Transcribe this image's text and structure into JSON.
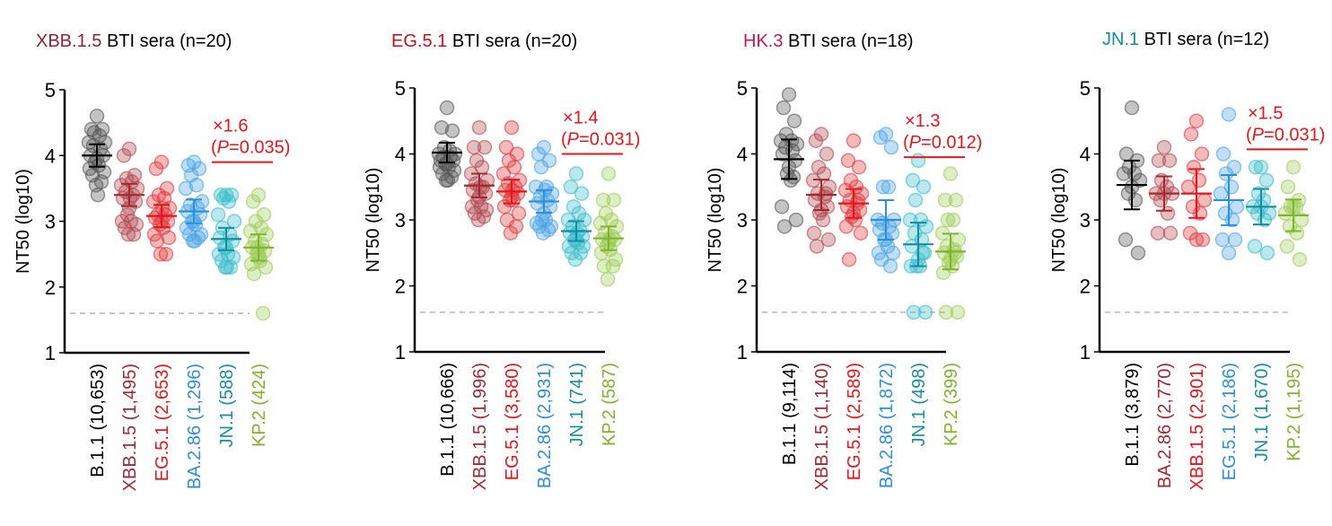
{
  "chart_data": [
    {
      "type": "scatter",
      "title_highlight": "XBB.1.5",
      "title_highlight_color": "#8b2332",
      "title_rest": " BTI sera (n=20)",
      "ylabel": "NT50 (log10)",
      "ylim": [
        1,
        5
      ],
      "yticks": [
        "1",
        "2",
        "3",
        "4",
        "5"
      ],
      "detection_limit": 1.6,
      "categories": [
        {
          "name": "B.1.1 (10,653)",
          "color": "#000000",
          "fill": "#555555",
          "mean": 4.0,
          "err": 0.17,
          "points": [
            4.6,
            4.4,
            4.4,
            4.35,
            4.3,
            4.2,
            4.2,
            4.15,
            4.1,
            4.0,
            4.0,
            3.95,
            3.9,
            3.85,
            3.8,
            3.75,
            3.7,
            3.6,
            3.55,
            3.4
          ]
        },
        {
          "name": "XBB.1.5 (1,495)",
          "color": "#a3282f",
          "fill": "#b3474f",
          "mean": 3.4,
          "err": 0.17,
          "points": [
            4.1,
            4.0,
            3.7,
            3.65,
            3.6,
            3.55,
            3.5,
            3.45,
            3.4,
            3.35,
            3.3,
            3.2,
            3.1,
            3.0,
            3.0,
            2.95,
            2.9,
            2.8,
            2.8,
            3.35
          ]
        },
        {
          "name": "EG.5.1 (2,653)",
          "color": "#e8141a",
          "fill": "#e0383c",
          "mean": 3.08,
          "err": 0.17,
          "points": [
            3.9,
            3.8,
            3.5,
            3.4,
            3.35,
            3.3,
            3.2,
            3.1,
            3.1,
            3.05,
            3.0,
            3.0,
            2.95,
            2.9,
            2.8,
            2.75,
            2.7,
            2.5,
            2.5,
            3.2
          ]
        },
        {
          "name": "BA.2.86 (1,296)",
          "color": "#2b8fde",
          "fill": "#4aa3e6",
          "mean": 3.15,
          "err": 0.18,
          "points": [
            3.9,
            3.85,
            3.8,
            3.7,
            3.55,
            3.5,
            3.3,
            3.25,
            3.2,
            3.15,
            3.1,
            3.0,
            3.0,
            2.95,
            2.9,
            2.8,
            2.8,
            2.75,
            2.7,
            2.7
          ]
        },
        {
          "name": "JN.1 (588)",
          "color": "#138e9e",
          "fill": "#3bbccc",
          "mean": 2.73,
          "err": 0.17,
          "points": [
            3.4,
            3.4,
            3.4,
            3.35,
            3.3,
            3.1,
            3.0,
            2.9,
            2.8,
            2.75,
            2.7,
            2.6,
            2.6,
            2.5,
            2.5,
            2.45,
            2.4,
            2.3,
            2.3,
            2.3
          ]
        },
        {
          "name": "KP.2 (424)",
          "color": "#7fb42d",
          "fill": "#9dcc55",
          "mean": 2.6,
          "err": 0.2,
          "points": [
            3.4,
            3.3,
            3.1,
            3.0,
            2.9,
            2.85,
            2.8,
            2.7,
            2.65,
            2.6,
            2.55,
            2.5,
            2.5,
            2.4,
            2.35,
            2.3,
            2.2,
            1.6,
            2.6,
            2.45
          ]
        }
      ],
      "annotation": {
        "fold": "×1.6",
        "p_label": "P",
        "p_value": "=0.035)",
        "open_paren": "(",
        "from": 4,
        "to": 5,
        "y": 3.9
      }
    },
    {
      "type": "scatter",
      "title_highlight": "EG.5.1",
      "title_highlight_color": "#c0141b",
      "title_rest": " BTI sera (n=20)",
      "ylabel": "NT50 (log10)",
      "ylim": [
        1,
        5
      ],
      "yticks": [
        "1",
        "2",
        "3",
        "4",
        "5"
      ],
      "detection_limit": 1.6,
      "categories": [
        {
          "name": "B.1.1 (10,666)",
          "color": "#000000",
          "fill": "#555555",
          "mean": 4.02,
          "err": 0.15,
          "points": [
            4.7,
            4.4,
            4.35,
            4.1,
            4.05,
            4.0,
            4.0,
            3.95,
            3.95,
            3.9,
            3.9,
            3.85,
            3.85,
            3.8,
            3.8,
            3.75,
            3.7,
            3.65,
            3.6,
            3.6
          ]
        },
        {
          "name": "XBB.1.5 (1,996)",
          "color": "#a3282f",
          "fill": "#b3474f",
          "mean": 3.52,
          "err": 0.18,
          "points": [
            4.4,
            4.1,
            4.1,
            3.9,
            3.8,
            3.7,
            3.6,
            3.55,
            3.5,
            3.45,
            3.4,
            3.35,
            3.3,
            3.2,
            3.2,
            3.15,
            3.1,
            3.05,
            3.0,
            3.5
          ]
        },
        {
          "name": "EG.5.1 (3,580)",
          "color": "#e8141a",
          "fill": "#e0383c",
          "mean": 3.43,
          "err": 0.18,
          "points": [
            4.4,
            4.1,
            4.0,
            3.9,
            3.8,
            3.7,
            3.6,
            3.55,
            3.5,
            3.45,
            3.4,
            3.35,
            3.3,
            3.3,
            3.2,
            3.1,
            3.0,
            2.9,
            2.8,
            3.45
          ]
        },
        {
          "name": "BA.2.86 (2,931)",
          "color": "#2b8fde",
          "fill": "#4aa3e6",
          "mean": 3.28,
          "err": 0.17,
          "points": [
            4.1,
            4.0,
            3.9,
            3.8,
            3.5,
            3.5,
            3.4,
            3.35,
            3.3,
            3.25,
            3.2,
            3.1,
            3.0,
            3.0,
            2.95,
            2.9,
            2.9,
            2.85,
            2.8,
            3.45
          ]
        },
        {
          "name": "JN.1 (741)",
          "color": "#138e9e",
          "fill": "#3bbccc",
          "mean": 2.83,
          "err": 0.15,
          "points": [
            3.7,
            3.5,
            3.4,
            3.2,
            3.1,
            3.0,
            3.0,
            2.9,
            2.85,
            2.8,
            2.75,
            2.7,
            2.7,
            2.65,
            2.6,
            2.6,
            2.5,
            2.5,
            2.4,
            2.8
          ]
        },
        {
          "name": "KP.2 (587)",
          "color": "#7fb42d",
          "fill": "#9dcc55",
          "mean": 2.72,
          "err": 0.18,
          "points": [
            3.7,
            3.3,
            3.3,
            3.1,
            3.0,
            2.95,
            2.9,
            2.8,
            2.75,
            2.7,
            2.7,
            2.65,
            2.6,
            2.55,
            2.5,
            2.4,
            2.3,
            2.3,
            2.1,
            2.7
          ]
        }
      ],
      "annotation": {
        "fold": "×1.4",
        "p_label": "P",
        "p_value": "=0.031)",
        "open_paren": "(",
        "from": 4,
        "to": 5,
        "y": 4.0
      }
    },
    {
      "type": "scatter",
      "title_highlight": "HK.3",
      "title_highlight_color": "#c2185b",
      "title_rest": " BTI sera (n=18)",
      "ylabel": "NT50 (log10)",
      "ylim": [
        1,
        5
      ],
      "yticks": [
        "1",
        "2",
        "3",
        "4",
        "5"
      ],
      "detection_limit": 1.6,
      "categories": [
        {
          "name": "B.1.1 (9,114)",
          "color": "#000000",
          "fill": "#555555",
          "mean": 3.92,
          "err": 0.3,
          "points": [
            4.9,
            4.7,
            4.5,
            4.3,
            4.2,
            4.2,
            4.15,
            4.1,
            4.05,
            4.0,
            3.9,
            3.8,
            3.7,
            3.6,
            3.2,
            3.0,
            2.9,
            3.65
          ]
        },
        {
          "name": "XBB.1.5 (1,140)",
          "color": "#a3282f",
          "fill": "#b3474f",
          "mean": 3.38,
          "err": 0.23,
          "points": [
            4.3,
            4.2,
            4.0,
            3.8,
            3.7,
            3.6,
            3.5,
            3.4,
            3.35,
            3.3,
            3.2,
            3.15,
            3.1,
            3.0,
            2.8,
            2.7,
            2.6,
            3.4
          ]
        },
        {
          "name": "EG.5.1 (2,589)",
          "color": "#e8141a",
          "fill": "#e0383c",
          "mean": 3.25,
          "err": 0.22,
          "points": [
            4.2,
            3.9,
            3.8,
            3.6,
            3.5,
            3.45,
            3.4,
            3.3,
            3.25,
            3.2,
            3.15,
            3.1,
            3.05,
            3.0,
            2.9,
            2.8,
            2.4,
            3.3
          ]
        },
        {
          "name": "BA.2.86 (1,872)",
          "color": "#2b8fde",
          "fill": "#4aa3e6",
          "mean": 3.0,
          "err": 0.3,
          "points": [
            4.3,
            4.25,
            4.1,
            3.5,
            3.5,
            3.0,
            3.0,
            2.95,
            2.9,
            2.85,
            2.8,
            2.7,
            2.7,
            2.6,
            2.5,
            2.5,
            2.4,
            2.3
          ]
        },
        {
          "name": "JN.1 (498)",
          "color": "#138e9e",
          "fill": "#3bbccc",
          "mean": 2.63,
          "err": 0.33,
          "points": [
            3.9,
            3.6,
            3.5,
            3.3,
            3.0,
            3.0,
            2.9,
            2.8,
            2.7,
            2.6,
            2.5,
            2.4,
            2.3,
            2.3,
            2.3,
            1.6,
            1.6,
            2.5
          ]
        },
        {
          "name": "KP.2 (399)",
          "color": "#7fb42d",
          "fill": "#9dcc55",
          "mean": 2.52,
          "err": 0.27,
          "points": [
            3.7,
            3.3,
            3.3,
            3.0,
            3.0,
            2.8,
            2.7,
            2.6,
            2.55,
            2.5,
            2.45,
            2.4,
            2.35,
            2.3,
            2.2,
            1.6,
            1.6,
            2.5
          ]
        }
      ],
      "annotation": {
        "fold": "×1.3",
        "p_label": "P",
        "p_value": "=0.012)",
        "open_paren": "(",
        "from": 4,
        "to": 5,
        "y": 3.95
      }
    },
    {
      "type": "scatter",
      "title_highlight": "JN.1",
      "title_highlight_color": "#138e9e",
      "title_rest": " BTI sera (n=12)",
      "ylabel": "NT50 (log10)",
      "ylim": [
        1,
        5
      ],
      "yticks": [
        "1",
        "2",
        "3",
        "4",
        "5"
      ],
      "detection_limit": 1.6,
      "categories": [
        {
          "name": "B.1.1 (3,879)",
          "color": "#000000",
          "fill": "#555555",
          "mean": 3.53,
          "err": 0.37,
          "points": [
            4.7,
            4.0,
            3.9,
            3.8,
            3.7,
            3.7,
            3.6,
            3.4,
            3.3,
            2.7,
            2.5,
            3.5
          ]
        },
        {
          "name": "BA.2.86 (2,770)",
          "color": "#a3282f",
          "fill": "#b3474f",
          "mean": 3.4,
          "err": 0.26,
          "points": [
            4.1,
            3.9,
            3.9,
            3.6,
            3.5,
            3.4,
            3.4,
            3.3,
            3.1,
            2.8,
            2.8,
            3.4
          ]
        },
        {
          "name": "XBB.1.5 (2,901)",
          "color": "#e8141a",
          "fill": "#e0383c",
          "mean": 3.4,
          "err": 0.37,
          "points": [
            4.5,
            4.3,
            4.0,
            3.8,
            3.6,
            3.5,
            3.3,
            3.2,
            3.1,
            2.8,
            2.7,
            2.7
          ]
        },
        {
          "name": "EG.5.1 (2,186)",
          "color": "#2b8fde",
          "fill": "#4aa3e6",
          "mean": 3.3,
          "err": 0.38,
          "points": [
            4.6,
            4.0,
            3.8,
            3.7,
            3.5,
            3.4,
            3.2,
            3.1,
            3.0,
            2.7,
            2.7,
            2.5
          ]
        },
        {
          "name": "JN.1 (1,670)",
          "color": "#138e9e",
          "fill": "#3bbccc",
          "mean": 3.2,
          "err": 0.27,
          "points": [
            3.8,
            3.8,
            3.6,
            3.4,
            3.3,
            3.2,
            3.1,
            3.1,
            3.0,
            2.6,
            2.5,
            3.2
          ]
        },
        {
          "name": "KP.2 (1,195)",
          "color": "#7fb42d",
          "fill": "#9dcc55",
          "mean": 3.07,
          "err": 0.24,
          "points": [
            3.8,
            3.5,
            3.3,
            3.2,
            3.2,
            3.1,
            3.0,
            2.9,
            2.8,
            2.6,
            2.4,
            3.2
          ]
        }
      ],
      "annotation": {
        "fold": "×1.5",
        "p_label": "P",
        "p_value": "=0.031)",
        "open_paren": "(",
        "from": 4,
        "to": 5,
        "y": 4.07
      }
    }
  ]
}
